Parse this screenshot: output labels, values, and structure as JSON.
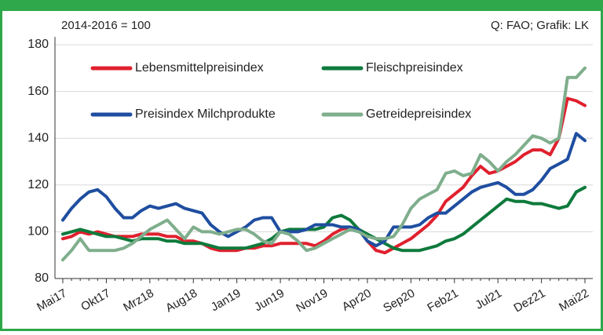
{
  "chart_data": {
    "type": "line",
    "note": "2014-2016 = 100",
    "source": "Q: FAO; Grafik: LK",
    "categories": [
      "Mai17",
      null,
      null,
      null,
      null,
      "Okt17",
      null,
      null,
      null,
      null,
      "Mrz18",
      null,
      null,
      null,
      null,
      "Aug18",
      null,
      null,
      null,
      null,
      "Jan19",
      null,
      null,
      null,
      null,
      "Jun19",
      null,
      null,
      null,
      null,
      "Nov19",
      null,
      null,
      null,
      null,
      "Apr20",
      null,
      null,
      null,
      null,
      "Sep20",
      null,
      null,
      null,
      null,
      "Feb21",
      null,
      null,
      null,
      null,
      "Jul21",
      null,
      null,
      null,
      null,
      "Dez21",
      null,
      null,
      null,
      null,
      "Mai22"
    ],
    "ylim": [
      80,
      180
    ],
    "yticks": [
      80,
      100,
      120,
      140,
      160,
      180
    ],
    "grid": true,
    "series": [
      {
        "name": "Lebensmittelpreisindex",
        "color": "#e0202e",
        "values": [
          97,
          98,
          100,
          99,
          100,
          99,
          98,
          98,
          98,
          99,
          99,
          99,
          98,
          98,
          96,
          96,
          95,
          93,
          92,
          92,
          92,
          93,
          93,
          94,
          94,
          95,
          95,
          95,
          95,
          94,
          96,
          99,
          101,
          102,
          101,
          96,
          92,
          91,
          93,
          95,
          97,
          100,
          103,
          107,
          113,
          116,
          119,
          124,
          128,
          125,
          126,
          128,
          130,
          133,
          135,
          135,
          133,
          140,
          157,
          156,
          154
        ]
      },
      {
        "name": "Fleischpreisindex",
        "color": "#0e7a3c",
        "values": [
          99,
          100,
          101,
          100,
          99,
          98,
          98,
          97,
          96,
          97,
          97,
          97,
          96,
          96,
          95,
          95,
          95,
          94,
          93,
          93,
          93,
          93,
          94,
          95,
          97,
          100,
          101,
          101,
          101,
          101,
          102,
          106,
          107,
          105,
          101,
          99,
          97,
          95,
          93,
          92,
          92,
          92,
          93,
          94,
          96,
          97,
          99,
          102,
          105,
          108,
          111,
          114,
          113,
          113,
          112,
          112,
          111,
          110,
          111,
          117,
          119
        ]
      },
      {
        "name": "Preisindex Milchprodukte",
        "color": "#1f4ea0",
        "values": [
          105,
          110,
          114,
          117,
          118,
          115,
          110,
          106,
          106,
          109,
          111,
          110,
          111,
          112,
          110,
          109,
          108,
          103,
          100,
          98,
          100,
          102,
          105,
          106,
          106,
          100,
          100,
          100,
          101,
          103,
          103,
          103,
          102,
          102,
          101,
          96,
          94,
          96,
          102,
          102,
          102,
          103,
          106,
          108,
          108,
          111,
          114,
          117,
          119,
          120,
          121,
          119,
          116,
          116,
          118,
          122,
          127,
          129,
          131,
          142,
          139
        ]
      },
      {
        "name": "Getreidepreisindex",
        "color": "#7fae8c",
        "values": [
          88,
          92,
          97,
          92,
          92,
          92,
          92,
          93,
          95,
          98,
          101,
          103,
          105,
          101,
          97,
          102,
          100,
          100,
          99,
          100,
          101,
          101,
          99,
          96,
          95,
          100,
          99,
          96,
          92,
          93,
          95,
          97,
          99,
          101,
          100,
          98,
          97,
          97,
          98,
          103,
          110,
          114,
          116,
          118,
          125,
          126,
          124,
          125,
          133,
          130,
          126,
          130,
          133,
          137,
          141,
          140,
          138,
          140,
          166,
          166,
          170
        ]
      }
    ]
  }
}
